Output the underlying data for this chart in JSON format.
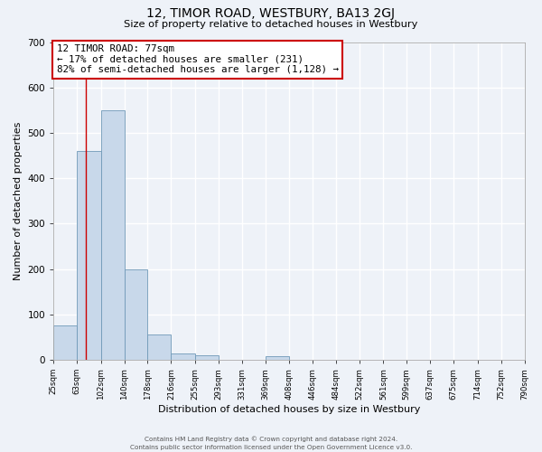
{
  "title": "12, TIMOR ROAD, WESTBURY, BA13 2GJ",
  "subtitle": "Size of property relative to detached houses in Westbury",
  "xlabel": "Distribution of detached houses by size in Westbury",
  "ylabel": "Number of detached properties",
  "bar_color": "#c8d8ea",
  "bar_edge_color": "#7099b8",
  "background_color": "#eef2f8",
  "grid_color": "#ffffff",
  "bin_edges": [
    25,
    63,
    102,
    140,
    178,
    216,
    255,
    293,
    331,
    369,
    408,
    446,
    484,
    522,
    561,
    599,
    637,
    675,
    714,
    752,
    790
  ],
  "bar_heights": [
    75,
    460,
    550,
    200,
    55,
    15,
    10,
    0,
    0,
    8,
    0,
    0,
    0,
    0,
    0,
    0,
    0,
    0,
    0,
    0
  ],
  "vline_color": "#cc0000",
  "vline_x": 77,
  "annotation_text": "12 TIMOR ROAD: 77sqm\n← 17% of detached houses are smaller (231)\n82% of semi-detached houses are larger (1,128) →",
  "annotation_box_color": "#ffffff",
  "annotation_box_edge": "#cc0000",
  "ylim": [
    0,
    700
  ],
  "yticks": [
    0,
    100,
    200,
    300,
    400,
    500,
    600,
    700
  ],
  "tick_labels": [
    "25sqm",
    "63sqm",
    "102sqm",
    "140sqm",
    "178sqm",
    "216sqm",
    "255sqm",
    "293sqm",
    "331sqm",
    "369sqm",
    "408sqm",
    "446sqm",
    "484sqm",
    "522sqm",
    "561sqm",
    "599sqm",
    "637sqm",
    "675sqm",
    "714sqm",
    "752sqm",
    "790sqm"
  ],
  "footer_line1": "Contains HM Land Registry data © Crown copyright and database right 2024.",
  "footer_line2": "Contains public sector information licensed under the Open Government Licence v3.0."
}
